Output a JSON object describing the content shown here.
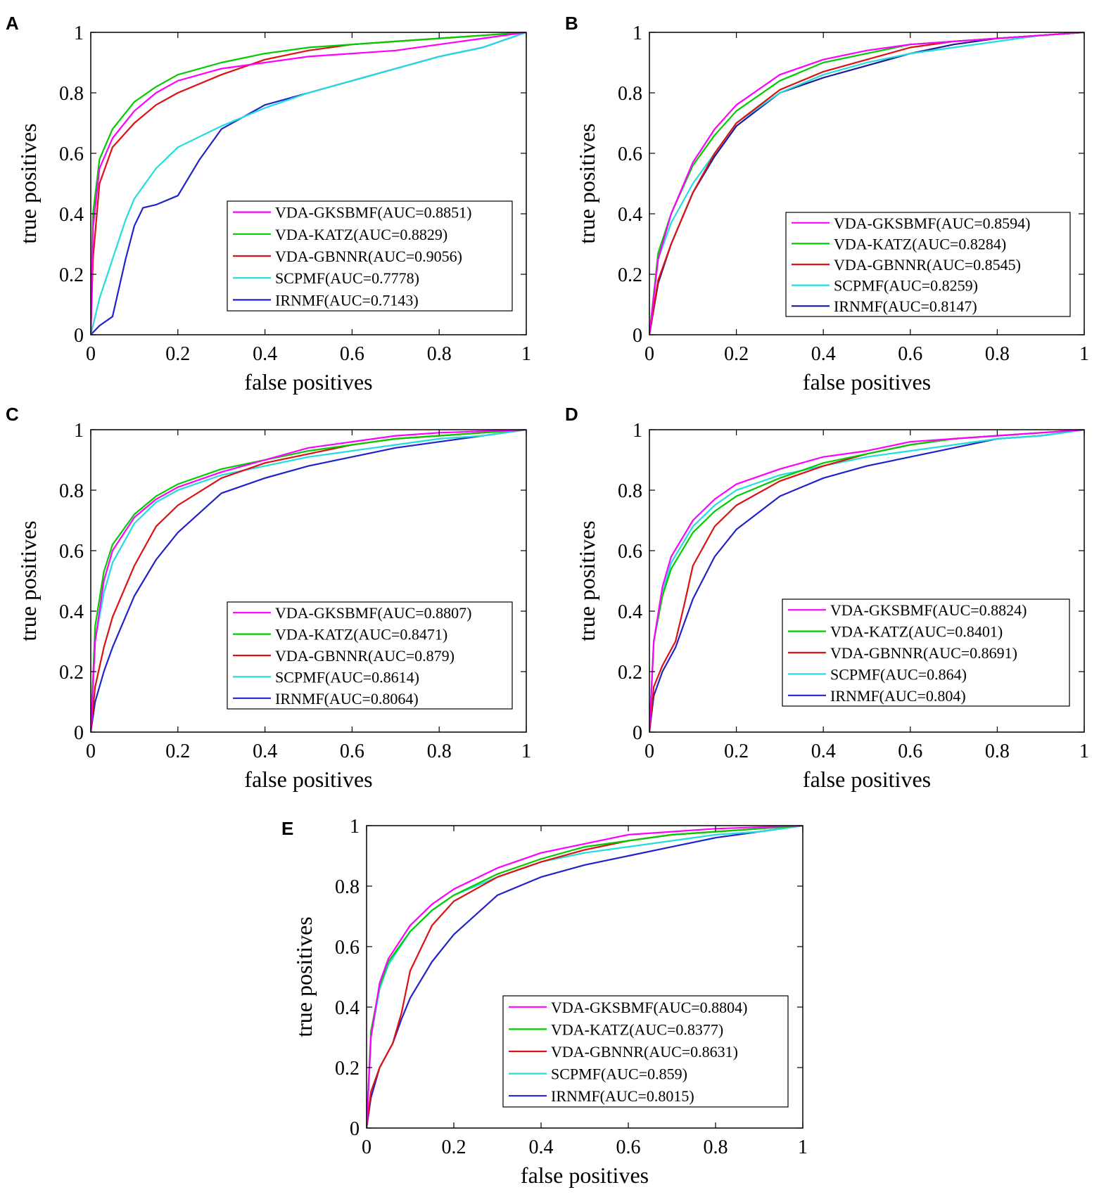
{
  "figure": {
    "description_panels": [
      "A",
      "B",
      "C",
      "D",
      "E"
    ]
  },
  "chart_data": [
    {
      "panel": "A",
      "type": "line",
      "xlabel": "false positives",
      "ylabel": "true positives",
      "xlim": [
        0,
        1
      ],
      "ylim": [
        0,
        1
      ],
      "xticks": [
        "0",
        "0.2",
        "0.4",
        "0.6",
        "0.8",
        "1"
      ],
      "yticks": [
        "0",
        "0.2",
        "0.4",
        "0.6",
        "0.8",
        "1"
      ],
      "legend_position": "center-right",
      "series": [
        {
          "name": "VDA-GKSBMF(AUC=0.8851)",
          "color": "#ff00ff",
          "x": [
            0,
            0.005,
            0.02,
            0.05,
            0.1,
            0.15,
            0.2,
            0.3,
            0.4,
            0.5,
            0.6,
            0.7,
            0.8,
            0.9,
            1
          ],
          "y": [
            0,
            0.35,
            0.55,
            0.65,
            0.74,
            0.8,
            0.84,
            0.88,
            0.9,
            0.92,
            0.93,
            0.94,
            0.96,
            0.98,
            1
          ]
        },
        {
          "name": "VDA-KATZ(AUC=0.8829)",
          "color": "#00cc00",
          "x": [
            0,
            0.005,
            0.02,
            0.05,
            0.1,
            0.15,
            0.2,
            0.3,
            0.4,
            0.5,
            0.6,
            0.7,
            0.8,
            0.9,
            1
          ],
          "y": [
            0,
            0.4,
            0.58,
            0.68,
            0.77,
            0.82,
            0.86,
            0.9,
            0.93,
            0.95,
            0.96,
            0.97,
            0.98,
            0.99,
            1
          ]
        },
        {
          "name": "VDA-GBNNR(AUC=0.9056)",
          "color": "#dd1111",
          "x": [
            0,
            0.005,
            0.02,
            0.05,
            0.1,
            0.15,
            0.2,
            0.3,
            0.4,
            0.5,
            0.6,
            0.7,
            0.8,
            0.9,
            1
          ],
          "y": [
            0,
            0.25,
            0.5,
            0.62,
            0.7,
            0.76,
            0.8,
            0.86,
            0.91,
            0.94,
            0.96,
            0.97,
            0.98,
            0.99,
            1
          ]
        },
        {
          "name": "SCPMF(AUC=0.7778)",
          "color": "#22dddd",
          "x": [
            0,
            0.02,
            0.05,
            0.08,
            0.1,
            0.15,
            0.2,
            0.3,
            0.4,
            0.5,
            0.6,
            0.7,
            0.8,
            0.9,
            1
          ],
          "y": [
            0,
            0.12,
            0.25,
            0.38,
            0.45,
            0.55,
            0.62,
            0.69,
            0.75,
            0.8,
            0.84,
            0.88,
            0.92,
            0.95,
            1
          ]
        },
        {
          "name": "IRNMF(AUC=0.7143)",
          "color": "#2222cc",
          "x": [
            0,
            0.02,
            0.05,
            0.08,
            0.1,
            0.12,
            0.15,
            0.2,
            0.25,
            0.3,
            0.4,
            0.5,
            0.6,
            0.7,
            0.8,
            0.9,
            1
          ],
          "y": [
            0,
            0.03,
            0.06,
            0.25,
            0.36,
            0.42,
            0.43,
            0.46,
            0.58,
            0.68,
            0.76,
            0.8,
            0.84,
            0.88,
            0.92,
            0.95,
            1
          ]
        }
      ]
    },
    {
      "panel": "B",
      "type": "line",
      "xlabel": "false positives",
      "ylabel": "true positives",
      "xlim": [
        0,
        1
      ],
      "ylim": [
        0,
        1
      ],
      "xticks": [
        "0",
        "0.2",
        "0.4",
        "0.6",
        "0.8",
        "1"
      ],
      "yticks": [
        "0",
        "0.2",
        "0.4",
        "0.6",
        "0.8",
        "1"
      ],
      "legend_position": "center-right",
      "series": [
        {
          "name": "VDA-GKSBMF(AUC=0.8594)",
          "color": "#ff00ff",
          "x": [
            0,
            0.02,
            0.05,
            0.1,
            0.15,
            0.2,
            0.3,
            0.4,
            0.5,
            0.6,
            0.7,
            0.8,
            0.9,
            1
          ],
          "y": [
            0,
            0.25,
            0.4,
            0.57,
            0.68,
            0.76,
            0.86,
            0.91,
            0.94,
            0.96,
            0.97,
            0.98,
            0.99,
            1
          ]
        },
        {
          "name": "VDA-KATZ(AUC=0.8284)",
          "color": "#00cc00",
          "x": [
            0,
            0.02,
            0.05,
            0.1,
            0.15,
            0.2,
            0.3,
            0.4,
            0.5,
            0.6,
            0.7,
            0.8,
            0.9,
            1
          ],
          "y": [
            0,
            0.27,
            0.4,
            0.56,
            0.66,
            0.74,
            0.84,
            0.9,
            0.93,
            0.96,
            0.97,
            0.98,
            0.99,
            1
          ]
        },
        {
          "name": "VDA-GBNNR(AUC=0.8545)",
          "color": "#dd1111",
          "x": [
            0,
            0.02,
            0.05,
            0.1,
            0.15,
            0.2,
            0.3,
            0.4,
            0.5,
            0.6,
            0.7,
            0.8,
            0.9,
            1
          ],
          "y": [
            0,
            0.18,
            0.3,
            0.47,
            0.6,
            0.7,
            0.81,
            0.87,
            0.91,
            0.95,
            0.97,
            0.98,
            0.99,
            1
          ]
        },
        {
          "name": "SCPMF(AUC=0.8259)",
          "color": "#22dddd",
          "x": [
            0,
            0.02,
            0.05,
            0.1,
            0.15,
            0.2,
            0.3,
            0.4,
            0.5,
            0.6,
            0.7,
            0.8,
            0.9,
            1
          ],
          "y": [
            0,
            0.25,
            0.37,
            0.5,
            0.6,
            0.7,
            0.8,
            0.86,
            0.9,
            0.93,
            0.95,
            0.97,
            0.99,
            1
          ]
        },
        {
          "name": "IRNMF(AUC=0.8147)",
          "color": "#1a1a99",
          "x": [
            0,
            0.02,
            0.05,
            0.1,
            0.15,
            0.2,
            0.3,
            0.4,
            0.5,
            0.6,
            0.7,
            0.8,
            0.9,
            1
          ],
          "y": [
            0,
            0.17,
            0.3,
            0.47,
            0.59,
            0.69,
            0.8,
            0.85,
            0.89,
            0.93,
            0.96,
            0.98,
            0.99,
            1
          ]
        }
      ]
    },
    {
      "panel": "C",
      "type": "line",
      "xlabel": "false positives",
      "ylabel": "true positives",
      "xlim": [
        0,
        1
      ],
      "ylim": [
        0,
        1
      ],
      "xticks": [
        "0",
        "0.2",
        "0.4",
        "0.6",
        "0.8",
        "1"
      ],
      "yticks": [
        "0",
        "0.2",
        "0.4",
        "0.6",
        "0.8",
        "1"
      ],
      "legend_position": "center-right",
      "series": [
        {
          "name": "VDA-GKSBMF(AUC=0.8807)",
          "color": "#ff00ff",
          "x": [
            0,
            0.01,
            0.03,
            0.05,
            0.1,
            0.15,
            0.2,
            0.3,
            0.4,
            0.5,
            0.6,
            0.7,
            0.8,
            0.9,
            1
          ],
          "y": [
            0,
            0.3,
            0.5,
            0.6,
            0.71,
            0.77,
            0.81,
            0.86,
            0.9,
            0.94,
            0.96,
            0.98,
            0.99,
            0.995,
            1
          ]
        },
        {
          "name": "VDA-KATZ(AUC=0.8471)",
          "color": "#00cc00",
          "x": [
            0,
            0.01,
            0.03,
            0.05,
            0.1,
            0.15,
            0.2,
            0.3,
            0.4,
            0.5,
            0.6,
            0.7,
            0.8,
            0.9,
            1
          ],
          "y": [
            0,
            0.35,
            0.53,
            0.62,
            0.72,
            0.78,
            0.82,
            0.87,
            0.9,
            0.93,
            0.95,
            0.97,
            0.98,
            0.99,
            1
          ]
        },
        {
          "name": "VDA-GBNNR(AUC=0.879)",
          "color": "#dd1111",
          "x": [
            0,
            0.01,
            0.03,
            0.05,
            0.1,
            0.15,
            0.2,
            0.3,
            0.4,
            0.5,
            0.6,
            0.7,
            0.8,
            0.9,
            1
          ],
          "y": [
            0,
            0.15,
            0.28,
            0.38,
            0.55,
            0.68,
            0.75,
            0.84,
            0.89,
            0.92,
            0.95,
            0.97,
            0.98,
            0.99,
            1
          ]
        },
        {
          "name": "SCPMF(AUC=0.8614)",
          "color": "#22dddd",
          "x": [
            0,
            0.01,
            0.03,
            0.05,
            0.1,
            0.15,
            0.2,
            0.3,
            0.4,
            0.5,
            0.6,
            0.7,
            0.8,
            0.9,
            1
          ],
          "y": [
            0,
            0.3,
            0.46,
            0.56,
            0.69,
            0.76,
            0.8,
            0.85,
            0.88,
            0.91,
            0.93,
            0.95,
            0.97,
            0.98,
            1
          ]
        },
        {
          "name": "IRNMF(AUC=0.8064)",
          "color": "#2222cc",
          "x": [
            0,
            0.01,
            0.03,
            0.05,
            0.1,
            0.15,
            0.2,
            0.3,
            0.4,
            0.5,
            0.6,
            0.7,
            0.8,
            0.9,
            1
          ],
          "y": [
            0,
            0.1,
            0.2,
            0.28,
            0.45,
            0.57,
            0.66,
            0.79,
            0.84,
            0.88,
            0.91,
            0.94,
            0.96,
            0.98,
            1
          ]
        }
      ]
    },
    {
      "panel": "D",
      "type": "line",
      "xlabel": "false positives",
      "ylabel": "true positives",
      "xlim": [
        0,
        1
      ],
      "ylim": [
        0,
        1
      ],
      "xticks": [
        "0",
        "0.2",
        "0.4",
        "0.6",
        "0.8",
        "1"
      ],
      "yticks": [
        "0",
        "0.2",
        "0.4",
        "0.6",
        "0.8",
        "1"
      ],
      "legend_position": "center-right",
      "series": [
        {
          "name": "VDA-GKSBMF(AUC=0.8824)",
          "color": "#ff00ff",
          "x": [
            0,
            0.01,
            0.03,
            0.05,
            0.1,
            0.15,
            0.2,
            0.3,
            0.4,
            0.5,
            0.6,
            0.7,
            0.8,
            0.9,
            1
          ],
          "y": [
            0,
            0.3,
            0.48,
            0.58,
            0.7,
            0.77,
            0.82,
            0.87,
            0.91,
            0.93,
            0.96,
            0.97,
            0.98,
            0.99,
            1
          ]
        },
        {
          "name": "VDA-KATZ(AUC=0.8401)",
          "color": "#00cc00",
          "x": [
            0,
            0.01,
            0.03,
            0.05,
            0.1,
            0.15,
            0.2,
            0.3,
            0.4,
            0.5,
            0.6,
            0.7,
            0.8,
            0.9,
            1
          ],
          "y": [
            0,
            0.3,
            0.45,
            0.54,
            0.66,
            0.73,
            0.78,
            0.84,
            0.89,
            0.92,
            0.95,
            0.97,
            0.98,
            0.99,
            1
          ]
        },
        {
          "name": "VDA-GBNNR(AUC=0.8691)",
          "color": "#dd1111",
          "x": [
            0,
            0.01,
            0.03,
            0.06,
            0.08,
            0.1,
            0.15,
            0.2,
            0.3,
            0.4,
            0.5,
            0.6,
            0.7,
            0.8,
            0.9,
            1
          ],
          "y": [
            0,
            0.15,
            0.22,
            0.3,
            0.42,
            0.55,
            0.68,
            0.75,
            0.83,
            0.88,
            0.92,
            0.95,
            0.97,
            0.98,
            0.99,
            1
          ]
        },
        {
          "name": "SCPMF(AUC=0.864)",
          "color": "#22dddd",
          "x": [
            0,
            0.01,
            0.03,
            0.05,
            0.1,
            0.15,
            0.2,
            0.3,
            0.4,
            0.5,
            0.6,
            0.7,
            0.8,
            0.9,
            1
          ],
          "y": [
            0,
            0.3,
            0.46,
            0.56,
            0.68,
            0.75,
            0.8,
            0.85,
            0.88,
            0.91,
            0.93,
            0.95,
            0.97,
            0.98,
            1
          ]
        },
        {
          "name": "IRNMF(AUC=0.804)",
          "color": "#2222cc",
          "x": [
            0,
            0.01,
            0.03,
            0.06,
            0.08,
            0.1,
            0.15,
            0.2,
            0.3,
            0.4,
            0.5,
            0.6,
            0.7,
            0.8,
            0.9,
            1
          ],
          "y": [
            0,
            0.12,
            0.2,
            0.28,
            0.36,
            0.44,
            0.58,
            0.67,
            0.78,
            0.84,
            0.88,
            0.91,
            0.94,
            0.97,
            0.98,
            1
          ]
        }
      ]
    },
    {
      "panel": "E",
      "type": "line",
      "xlabel": "false positives",
      "ylabel": "true positives",
      "xlim": [
        0,
        1
      ],
      "ylim": [
        0,
        1
      ],
      "xticks": [
        "0",
        "0.2",
        "0.4",
        "0.6",
        "0.8",
        "1"
      ],
      "yticks": [
        "0",
        "0.2",
        "0.4",
        "0.6",
        "0.8",
        "1"
      ],
      "legend_position": "lower-right",
      "series": [
        {
          "name": "VDA-GKSBMF(AUC=0.8804)",
          "color": "#ff00ff",
          "x": [
            0,
            0.01,
            0.03,
            0.05,
            0.1,
            0.15,
            0.2,
            0.3,
            0.4,
            0.5,
            0.6,
            0.7,
            0.8,
            0.9,
            1
          ],
          "y": [
            0,
            0.3,
            0.48,
            0.56,
            0.67,
            0.74,
            0.79,
            0.86,
            0.91,
            0.94,
            0.97,
            0.98,
            0.99,
            0.995,
            1
          ]
        },
        {
          "name": "VDA-KATZ(AUC=0.8377)",
          "color": "#00cc00",
          "x": [
            0,
            0.01,
            0.03,
            0.05,
            0.1,
            0.15,
            0.2,
            0.3,
            0.4,
            0.5,
            0.6,
            0.7,
            0.8,
            0.9,
            1
          ],
          "y": [
            0,
            0.32,
            0.47,
            0.55,
            0.65,
            0.72,
            0.77,
            0.84,
            0.89,
            0.93,
            0.95,
            0.97,
            0.98,
            0.99,
            1
          ]
        },
        {
          "name": "VDA-GBNNR(AUC=0.8631)",
          "color": "#dd1111",
          "x": [
            0,
            0.01,
            0.03,
            0.06,
            0.08,
            0.1,
            0.15,
            0.2,
            0.3,
            0.4,
            0.5,
            0.6,
            0.7,
            0.8,
            0.9,
            1
          ],
          "y": [
            0,
            0.12,
            0.2,
            0.28,
            0.38,
            0.52,
            0.67,
            0.75,
            0.83,
            0.88,
            0.92,
            0.95,
            0.97,
            0.98,
            0.99,
            1
          ]
        },
        {
          "name": "SCPMF(AUC=0.859)",
          "color": "#22dddd",
          "x": [
            0,
            0.01,
            0.03,
            0.05,
            0.1,
            0.15,
            0.2,
            0.3,
            0.4,
            0.5,
            0.6,
            0.7,
            0.8,
            0.9,
            1
          ],
          "y": [
            0,
            0.3,
            0.46,
            0.54,
            0.65,
            0.72,
            0.77,
            0.83,
            0.88,
            0.91,
            0.93,
            0.95,
            0.97,
            0.98,
            1
          ]
        },
        {
          "name": "IRNMF(AUC=0.8015)",
          "color": "#2222cc",
          "x": [
            0,
            0.01,
            0.03,
            0.06,
            0.08,
            0.1,
            0.15,
            0.2,
            0.3,
            0.4,
            0.5,
            0.6,
            0.7,
            0.8,
            0.9,
            1
          ],
          "y": [
            0,
            0.1,
            0.2,
            0.28,
            0.36,
            0.43,
            0.55,
            0.64,
            0.77,
            0.83,
            0.87,
            0.9,
            0.93,
            0.96,
            0.98,
            1
          ]
        }
      ]
    }
  ]
}
